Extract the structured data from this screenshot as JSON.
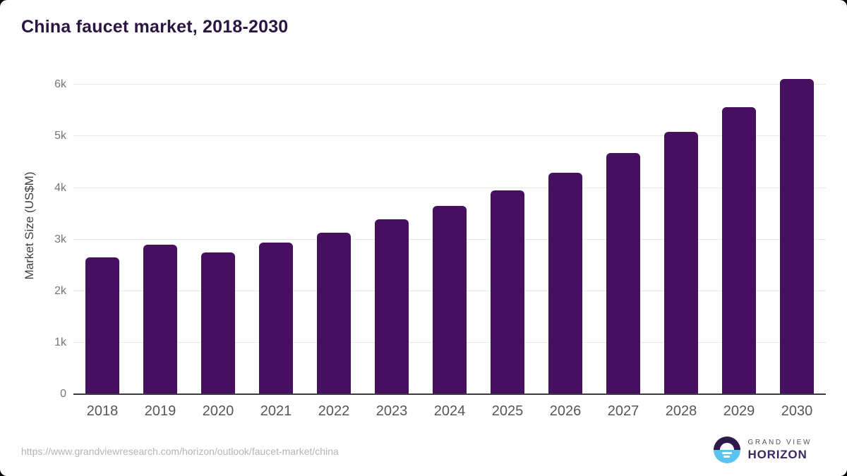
{
  "page": {
    "title": "China faucet market, 2018-2030",
    "footer": {
      "source_url": "https://www.grandviewresearch.com/horizon/outlook/faucet-market/china",
      "logo": {
        "line1": "GRAND VIEW",
        "line2": "HORIZON"
      }
    }
  },
  "chart_data": {
    "type": "bar",
    "title": "China faucet market, 2018-2030",
    "xlabel": "",
    "ylabel": "Market Size (US$M)",
    "categories": [
      "2018",
      "2019",
      "2020",
      "2021",
      "2022",
      "2023",
      "2024",
      "2025",
      "2026",
      "2027",
      "2028",
      "2029",
      "2030"
    ],
    "values": [
      2660,
      2900,
      2755,
      2945,
      3135,
      3385,
      3655,
      3955,
      4290,
      4675,
      5085,
      5565,
      6110
    ],
    "yticks": [
      {
        "label": "0",
        "value": 0
      },
      {
        "label": "1k",
        "value": 1000
      },
      {
        "label": "2k",
        "value": 2000
      },
      {
        "label": "3k",
        "value": 3000
      },
      {
        "label": "4k",
        "value": 4000
      },
      {
        "label": "5k",
        "value": 5000
      },
      {
        "label": "6k",
        "value": 6000
      }
    ],
    "ylim": [
      0,
      6400
    ],
    "grid": true,
    "legend": false,
    "colors": {
      "bar": "#470f60",
      "gridline": "#e8e8e8",
      "axis_line": "#3d3d3d",
      "title": "#2b1543",
      "xtick_label": "#565656",
      "ytick_label": "#757575",
      "axis_title": "#3f3f3f",
      "url_text": "#b4b4b4",
      "logo_purple": "#2d1b4e",
      "logo_blue": "#5bc3ef",
      "logo_text_dark": "#3a2960",
      "logo_text_gray": "#52525f"
    }
  }
}
